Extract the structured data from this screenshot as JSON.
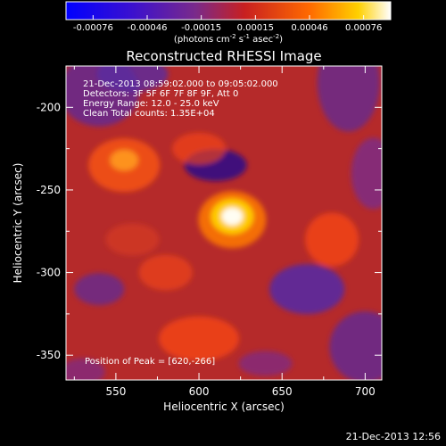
{
  "colorbar": {
    "ticks": [
      "-0.00076",
      "-0.00046",
      "-0.00015",
      "0.00015",
      "0.00046",
      "0.00076"
    ],
    "units": "(photons cm",
    "units_exp1": "-2",
    "units_mid": " s",
    "units_exp2": "-1",
    "units_mid2": " asec",
    "units_exp3": "-2",
    "units_end": ")"
  },
  "chart_data": {
    "type": "heatmap",
    "title": "Reconstructed RHESSI Image",
    "xlabel": "Heliocentric X (arcsec)",
    "ylabel": "Heliocentric Y (arcsec)",
    "xlim": [
      520,
      710
    ],
    "ylim": [
      -365,
      -175
    ],
    "xticks": [
      550,
      600,
      650,
      700
    ],
    "yticks": [
      -350,
      -300,
      -250,
      -200
    ],
    "clim": [
      -0.00076,
      0.00076
    ],
    "colormap": [
      "#0000ff",
      "#5a1fa0",
      "#b43c3c",
      "#ff4a00",
      "#ffd000",
      "#ffffff"
    ],
    "annotations": [
      "21-Dec-2013 08:59:02.000 to 09:05:02.000",
      "Detectors: 3F 5F 6F 7F 8F 9F, Att 0",
      "Energy Range: 12.0 - 25.0 keV",
      "Clean     Total counts: 1.35E+04"
    ],
    "peak_label": "Position of Peak = [620,-266]",
    "peak": [
      620,
      -266
    ]
  },
  "timestamp": "21-Dec-2013 12:56"
}
